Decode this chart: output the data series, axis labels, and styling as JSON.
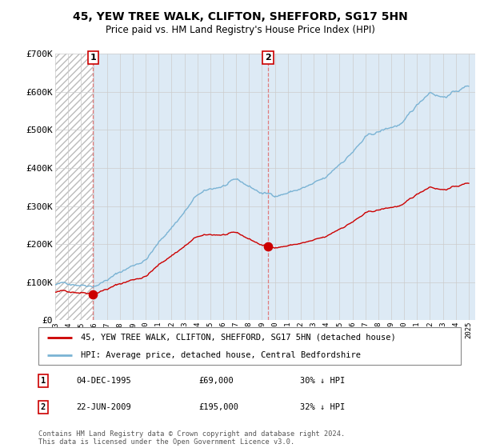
{
  "title": "45, YEW TREE WALK, CLIFTON, SHEFFORD, SG17 5HN",
  "subtitle": "Price paid vs. HM Land Registry's House Price Index (HPI)",
  "ylim": [
    0,
    700000
  ],
  "yticks": [
    0,
    100000,
    200000,
    300000,
    400000,
    500000,
    600000,
    700000
  ],
  "ytick_labels": [
    "£0",
    "£100K",
    "£200K",
    "£300K",
    "£400K",
    "£500K",
    "£600K",
    "£700K"
  ],
  "hpi_color": "#7ab3d4",
  "price_color": "#cc0000",
  "marker_color": "#cc0000",
  "bg_color": "#ddeaf5",
  "hatch_bg": "#ffffff",
  "hatch_color": "#bbbbbb",
  "grid_color": "#cccccc",
  "vline_color": "#e07070",
  "purchase1_date": 1995.92,
  "purchase1_price": 69000,
  "purchase2_date": 2009.47,
  "purchase2_price": 195000,
  "legend_label1": "45, YEW TREE WALK, CLIFTON, SHEFFORD, SG17 5HN (detached house)",
  "legend_label2": "HPI: Average price, detached house, Central Bedfordshire",
  "note1_num": "1",
  "note1_date": "04-DEC-1995",
  "note1_price": "£69,000",
  "note1_hpi": "30% ↓ HPI",
  "note2_num": "2",
  "note2_date": "22-JUN-2009",
  "note2_price": "£195,000",
  "note2_hpi": "32% ↓ HPI",
  "copyright": "Contains HM Land Registry data © Crown copyright and database right 2024.\nThis data is licensed under the Open Government Licence v3.0."
}
